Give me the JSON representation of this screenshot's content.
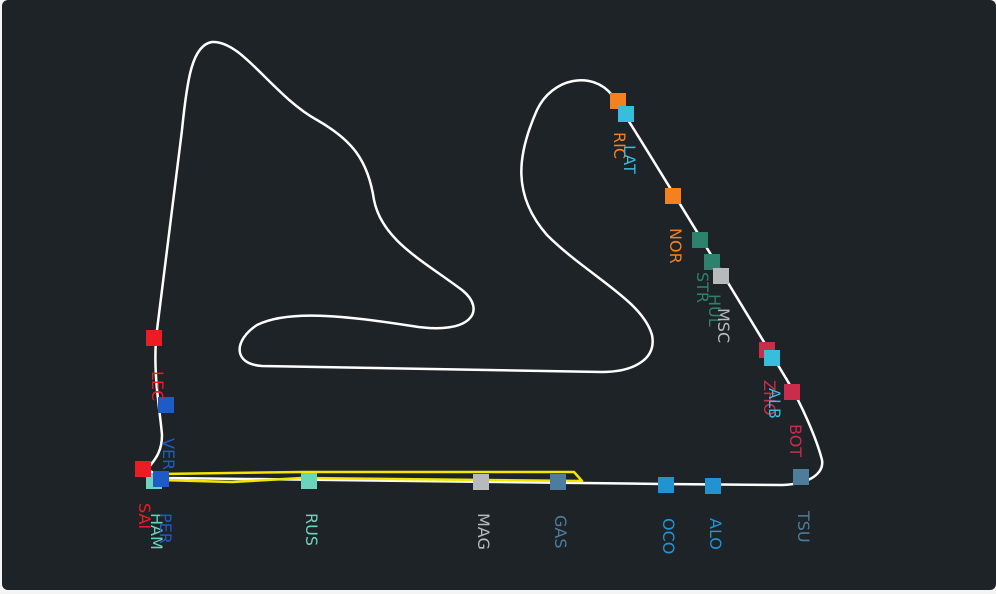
{
  "track": {
    "track_color": "#ffffff",
    "highlight_color": "#f2e600"
  },
  "drivers": [
    {
      "code": "RIC",
      "color": "#f58020"
    },
    {
      "code": "LAT",
      "color": "#37bedd"
    },
    {
      "code": "NOR",
      "color": "#f58020"
    },
    {
      "code": "STR",
      "color": "#2d826d"
    },
    {
      "code": "HUL",
      "color": "#2d826d"
    },
    {
      "code": "MSC",
      "color": "#b6babd"
    },
    {
      "code": "ZHO",
      "color": "#c92d4b"
    },
    {
      "code": "ALB",
      "color": "#37bedd"
    },
    {
      "code": "BOT",
      "color": "#c92d4b"
    },
    {
      "code": "TSU",
      "color": "#4e7c9b"
    },
    {
      "code": "ALO",
      "color": "#2293d1"
    },
    {
      "code": "OCO",
      "color": "#2293d1"
    },
    {
      "code": "GAS",
      "color": "#4e7c9b"
    },
    {
      "code": "MAG",
      "color": "#b6babd"
    },
    {
      "code": "RUS",
      "color": "#6cd3bf"
    },
    {
      "code": "HAM",
      "color": "#6cd3bf"
    },
    {
      "code": "PER",
      "color": "#1e5bc6"
    },
    {
      "code": "SAI",
      "color": "#ed1c24"
    },
    {
      "code": "VER",
      "color": "#1e5bc6"
    },
    {
      "code": "LEC",
      "color": "#ed1c24"
    }
  ]
}
